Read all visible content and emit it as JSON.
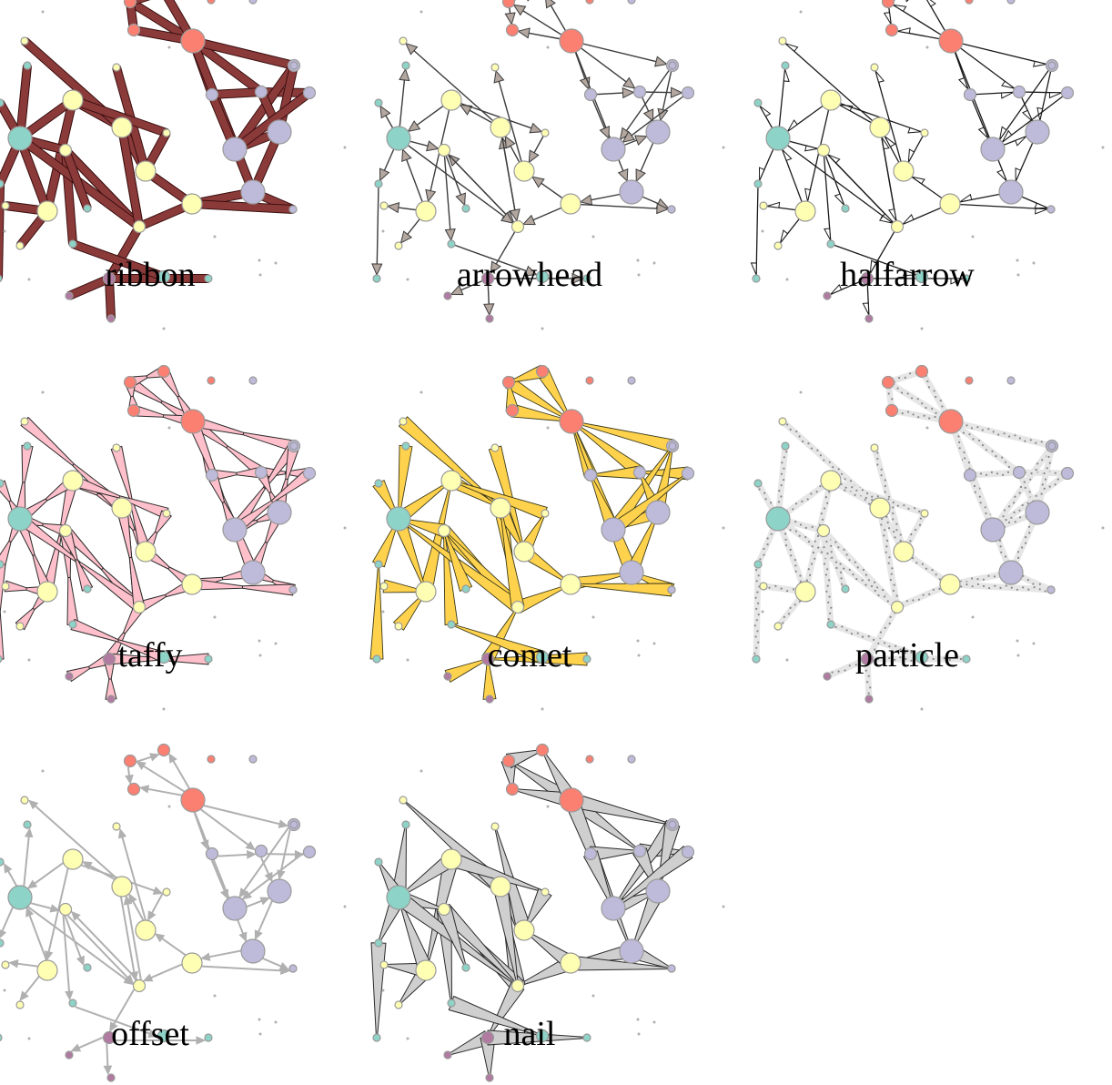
{
  "panels": [
    {
      "label": "ribbon",
      "style": "ribbon",
      "edge_fill": "#8b3a3a",
      "edge_stroke": "#3a0f0f"
    },
    {
      "label": "arrowhead",
      "style": "arrowhead",
      "edge_fill": "#b3a7a0",
      "edge_stroke": "#3c3c3c"
    },
    {
      "label": "halfarrow",
      "style": "halfarrow",
      "edge_fill": "#d0d0d0",
      "edge_stroke": "#1a1a1a"
    },
    {
      "label": "taffy",
      "style": "taffy",
      "edge_fill": "#ffc0cb",
      "edge_stroke": "#2b2b2b"
    },
    {
      "label": "comet",
      "style": "comet",
      "edge_fill": "#ffd24d",
      "edge_stroke": "#3a3a1a"
    },
    {
      "label": "particle",
      "style": "particle",
      "edge_fill": "#e6e6e6",
      "edge_stroke": "#888888"
    },
    {
      "label": "offset",
      "style": "offset",
      "edge_fill": "#c8c8c8",
      "edge_stroke": "#b0b0b0"
    },
    {
      "label": "nail",
      "style": "nail",
      "edge_fill": "#cfcfcf",
      "edge_stroke": "#2a2a2a"
    }
  ],
  "colors": {
    "node_red": "#fb8072",
    "node_yellow": "#ffffb3",
    "node_teal": "#8dd3c7",
    "node_lavender": "#bebada",
    "node_purple": "#b07aa1",
    "node_gray": "#b0b0b0",
    "node_stroke": "#9a9a9a"
  },
  "graph": {
    "nodes": [
      {
        "id": "r1",
        "color": "node_red",
        "size": "large"
      },
      {
        "id": "r2",
        "color": "node_red",
        "size": "small"
      },
      {
        "id": "r3",
        "color": "node_red",
        "size": "small"
      },
      {
        "id": "r4",
        "color": "node_red",
        "size": "small"
      },
      {
        "id": "r5",
        "color": "node_red",
        "size": "tiny"
      },
      {
        "id": "y1",
        "color": "node_yellow",
        "size": "medium"
      },
      {
        "id": "y2",
        "color": "node_yellow",
        "size": "medium"
      },
      {
        "id": "y3",
        "color": "node_yellow",
        "size": "medium"
      },
      {
        "id": "y4",
        "color": "node_yellow",
        "size": "medium"
      },
      {
        "id": "y5",
        "color": "node_yellow",
        "size": "small"
      },
      {
        "id": "y6",
        "color": "node_yellow",
        "size": "small"
      },
      {
        "id": "y7",
        "color": "node_yellow",
        "size": "medium"
      },
      {
        "id": "y8",
        "color": "node_yellow",
        "size": "tiny"
      },
      {
        "id": "y9",
        "color": "node_yellow",
        "size": "tiny"
      },
      {
        "id": "y10",
        "color": "node_yellow",
        "size": "tiny"
      },
      {
        "id": "y11",
        "color": "node_yellow",
        "size": "tiny"
      },
      {
        "id": "y12",
        "color": "node_yellow",
        "size": "tiny"
      },
      {
        "id": "t1",
        "color": "node_teal",
        "size": "large"
      },
      {
        "id": "t2",
        "color": "node_teal",
        "size": "tiny"
      },
      {
        "id": "t3",
        "color": "node_teal",
        "size": "tiny"
      },
      {
        "id": "t4",
        "color": "node_teal",
        "size": "tiny"
      },
      {
        "id": "t5",
        "color": "node_teal",
        "size": "tiny"
      },
      {
        "id": "t6",
        "color": "node_teal",
        "size": "tiny"
      },
      {
        "id": "t7",
        "color": "node_teal",
        "size": "tiny"
      },
      {
        "id": "t8",
        "color": "node_teal",
        "size": "small"
      },
      {
        "id": "t9",
        "color": "node_teal",
        "size": "tiny"
      },
      {
        "id": "t10",
        "color": "node_teal",
        "size": "tiny"
      },
      {
        "id": "l1",
        "color": "node_lavender",
        "size": "large"
      },
      {
        "id": "l2",
        "color": "node_lavender",
        "size": "large"
      },
      {
        "id": "l3",
        "color": "node_lavender",
        "size": "large"
      },
      {
        "id": "l4",
        "color": "node_lavender",
        "size": "small"
      },
      {
        "id": "l5",
        "color": "node_lavender",
        "size": "small"
      },
      {
        "id": "l6",
        "color": "node_lavender",
        "size": "small"
      },
      {
        "id": "l7",
        "color": "node_lavender",
        "size": "small"
      },
      {
        "id": "l8",
        "color": "node_lavender",
        "size": "tiny"
      },
      {
        "id": "l9",
        "color": "node_lavender",
        "size": "tiny"
      },
      {
        "id": "l10",
        "color": "node_lavender",
        "size": "tiny"
      },
      {
        "id": "p1",
        "color": "node_purple",
        "size": "small"
      },
      {
        "id": "p2",
        "color": "node_purple",
        "size": "tiny"
      },
      {
        "id": "p3",
        "color": "node_purple",
        "size": "tiny"
      },
      {
        "id": "g1",
        "color": "node_gray",
        "size": "dot"
      },
      {
        "id": "g2",
        "color": "node_gray",
        "size": "dot"
      },
      {
        "id": "g3",
        "color": "node_gray",
        "size": "dot"
      },
      {
        "id": "g4",
        "color": "node_gray",
        "size": "dot"
      },
      {
        "id": "g5",
        "color": "node_gray",
        "size": "dot"
      },
      {
        "id": "g6",
        "color": "node_gray",
        "size": "dot"
      },
      {
        "id": "g7",
        "color": "node_gray",
        "size": "dot"
      },
      {
        "id": "g8",
        "color": "node_gray",
        "size": "dot"
      },
      {
        "id": "g9",
        "color": "node_gray",
        "size": "dot"
      },
      {
        "id": "g10",
        "color": "node_gray",
        "size": "dot"
      }
    ],
    "edges": [
      [
        "r1",
        "r2"
      ],
      [
        "r1",
        "r3"
      ],
      [
        "r1",
        "r4"
      ],
      [
        "r2",
        "r3"
      ],
      [
        "r2",
        "r4"
      ],
      [
        "r1",
        "l4"
      ],
      [
        "r1",
        "l5"
      ],
      [
        "r1",
        "l6"
      ],
      [
        "r1",
        "l1"
      ],
      [
        "l4",
        "l5"
      ],
      [
        "l5",
        "l7"
      ],
      [
        "l4",
        "l2"
      ],
      [
        "l6",
        "l2"
      ],
      [
        "l6",
        "l3"
      ],
      [
        "l5",
        "l3"
      ],
      [
        "l2",
        "l3"
      ],
      [
        "l3",
        "l1"
      ],
      [
        "l1",
        "l9"
      ],
      [
        "l7",
        "l2"
      ],
      [
        "l10",
        "l6"
      ],
      [
        "l1",
        "y7"
      ],
      [
        "y7",
        "y6"
      ],
      [
        "y7",
        "y4"
      ],
      [
        "y6",
        "y3"
      ],
      [
        "y6",
        "y5"
      ],
      [
        "y4",
        "y3"
      ],
      [
        "y4",
        "y9"
      ],
      [
        "y3",
        "y1"
      ],
      [
        "y3",
        "y10"
      ],
      [
        "y1",
        "y2"
      ],
      [
        "y1",
        "t1"
      ],
      [
        "y1",
        "y8"
      ],
      [
        "y2",
        "y11"
      ],
      [
        "y2",
        "y12"
      ],
      [
        "y2",
        "t1"
      ],
      [
        "t1",
        "t2"
      ],
      [
        "t1",
        "t3"
      ],
      [
        "t1",
        "t4"
      ],
      [
        "t1",
        "y5"
      ],
      [
        "y5",
        "t6"
      ],
      [
        "y5",
        "y6"
      ],
      [
        "t1",
        "y6"
      ],
      [
        "y8",
        "y4"
      ],
      [
        "y6",
        "p1"
      ],
      [
        "p1",
        "p2"
      ],
      [
        "p1",
        "p3"
      ],
      [
        "p1",
        "t7"
      ],
      [
        "t6",
        "t8"
      ],
      [
        "y5",
        "t5"
      ],
      [
        "t4",
        "t9"
      ],
      [
        "y7",
        "t10"
      ],
      [
        "y3",
        "y6"
      ]
    ]
  }
}
